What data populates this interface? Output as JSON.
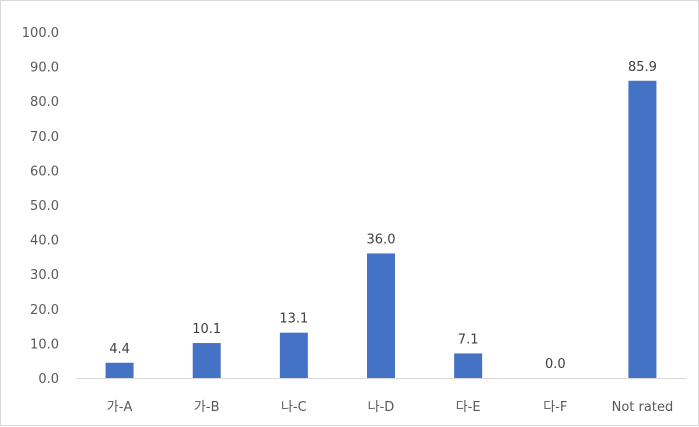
{
  "chart_data": {
    "type": "bar",
    "categories": [
      "가-A",
      "가-B",
      "나-C",
      "나-D",
      "다-E",
      "다-F",
      "Not rated"
    ],
    "values": [
      4.4,
      10.1,
      13.1,
      36.0,
      7.1,
      0.0,
      85.9
    ],
    "data_labels": [
      "4.4",
      "10.1",
      "13.1",
      "36.0",
      "7.1",
      "0.0",
      "85.9"
    ],
    "y_ticks": [
      "0.0",
      "10.0",
      "20.0",
      "30.0",
      "40.0",
      "50.0",
      "60.0",
      "70.0",
      "80.0",
      "90.0",
      "100.0"
    ],
    "ylim": [
      0,
      100
    ],
    "grid": false,
    "title": "",
    "xlabel": "",
    "ylabel": "",
    "bar_color": "#4472c4",
    "axis_color": "#d9d9d9"
  }
}
